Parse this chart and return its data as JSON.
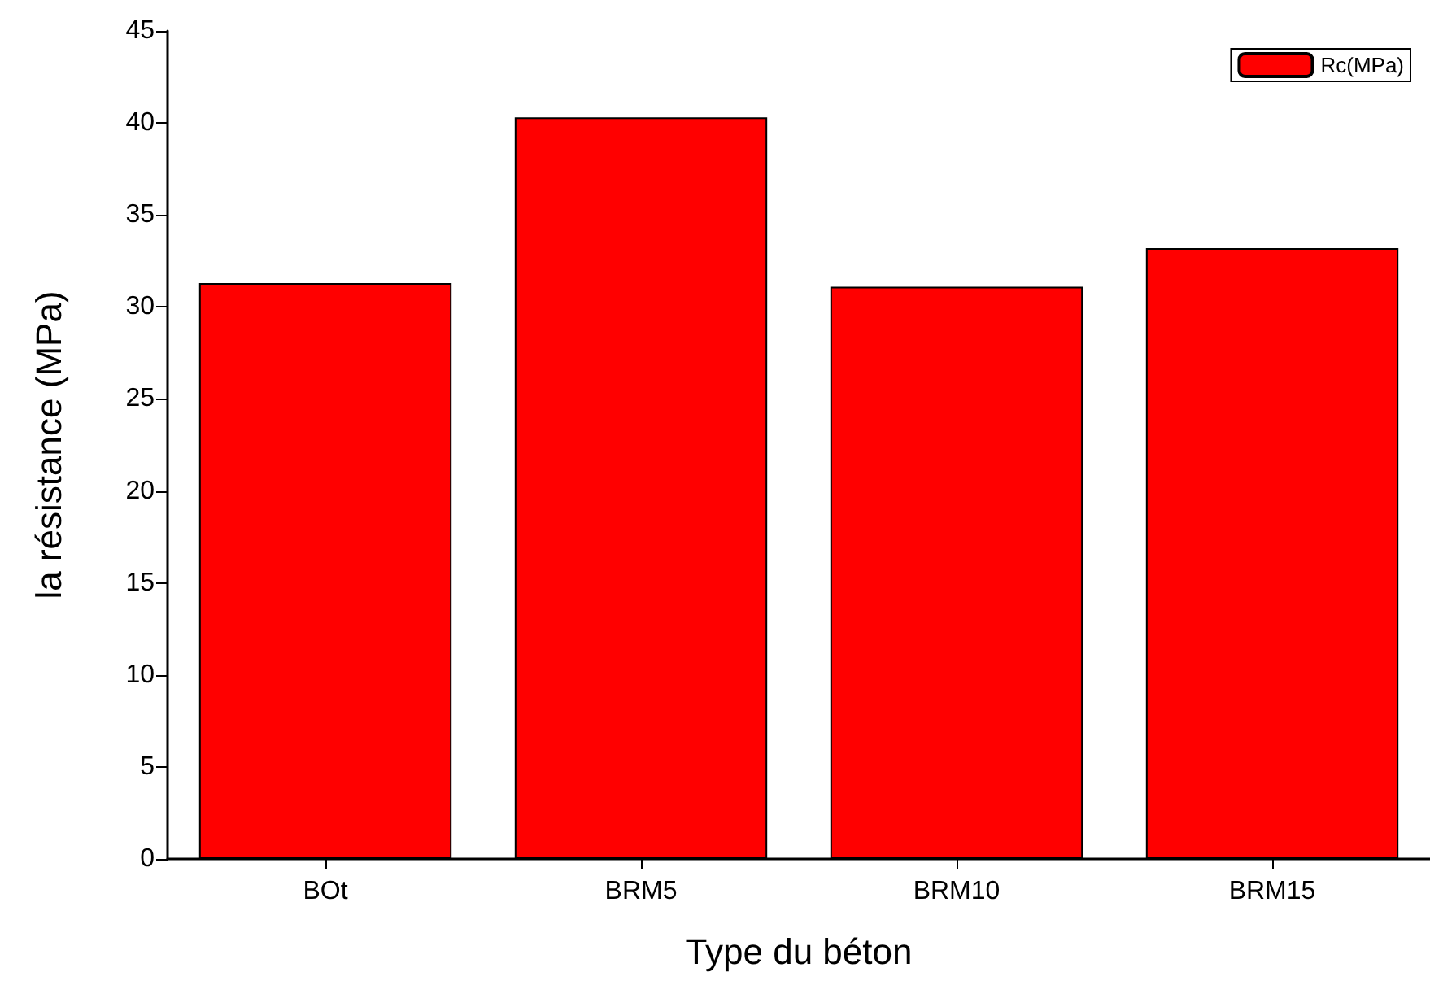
{
  "chart_data": {
    "type": "bar",
    "xlabel": "Type du béton",
    "ylabel": "la résistance (MPa)",
    "categories": [
      "BOt",
      "BRM5",
      "BRM10",
      "BRM15"
    ],
    "series": [
      {
        "name": "Rc(MPa)",
        "color": "#ff0000",
        "values": [
          31.3,
          40.3,
          31.1,
          33.2
        ]
      }
    ],
    "ylim": [
      0,
      45
    ],
    "yticks": [
      0,
      5,
      10,
      15,
      20,
      25,
      30,
      35,
      40,
      45
    ],
    "grid": false,
    "legend": "top right"
  }
}
